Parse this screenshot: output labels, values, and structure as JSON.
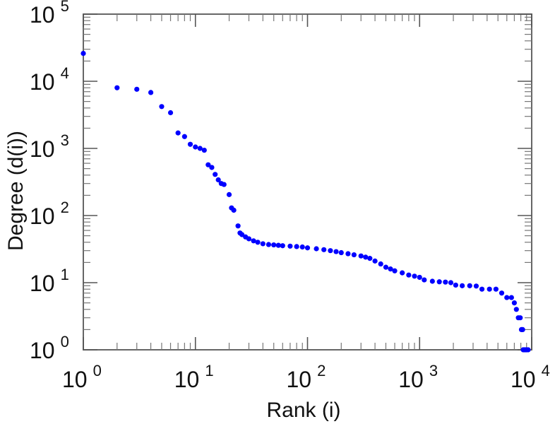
{
  "chart_data": {
    "type": "scatter",
    "x_scale": "log",
    "y_scale": "log",
    "xlim": [
      1,
      10000
    ],
    "ylim": [
      1,
      100000
    ],
    "xlabel": "Rank (i)",
    "ylabel": "Degree (d(i))",
    "grid": false,
    "marker_color": "#0000ff",
    "x_ticks": [
      {
        "base": "10",
        "exp": "0",
        "value": 1
      },
      {
        "base": "10",
        "exp": "1",
        "value": 10
      },
      {
        "base": "10",
        "exp": "2",
        "value": 100
      },
      {
        "base": "10",
        "exp": "3",
        "value": 1000
      },
      {
        "base": "10",
        "exp": "4",
        "value": 10000
      }
    ],
    "y_ticks": [
      {
        "base": "10",
        "exp": "0",
        "value": 1
      },
      {
        "base": "10",
        "exp": "1",
        "value": 10
      },
      {
        "base": "10",
        "exp": "2",
        "value": 100
      },
      {
        "base": "10",
        "exp": "3",
        "value": 1000
      },
      {
        "base": "10",
        "exp": "4",
        "value": 10000
      },
      {
        "base": "10",
        "exp": "5",
        "value": 100000
      }
    ],
    "points": [
      [
        1,
        26000
      ],
      [
        2,
        8000
      ],
      [
        3,
        7600
      ],
      [
        4,
        6800
      ],
      [
        5,
        4200
      ],
      [
        6,
        3400
      ],
      [
        7,
        1700
      ],
      [
        8,
        1500
      ],
      [
        9,
        1150
      ],
      [
        10,
        1050
      ],
      [
        11,
        1000
      ],
      [
        12,
        940
      ],
      [
        13,
        570
      ],
      [
        14,
        520
      ],
      [
        15,
        410
      ],
      [
        16,
        340
      ],
      [
        17,
        300
      ],
      [
        18,
        290
      ],
      [
        20,
        205
      ],
      [
        21,
        130
      ],
      [
        22,
        120
      ],
      [
        24,
        70
      ],
      [
        25,
        55
      ],
      [
        26,
        52
      ],
      [
        28,
        48
      ],
      [
        30,
        45
      ],
      [
        33,
        42
      ],
      [
        36,
        40
      ],
      [
        40,
        38
      ],
      [
        45,
        37
      ],
      [
        50,
        36.5
      ],
      [
        55,
        36
      ],
      [
        60,
        35.5
      ],
      [
        70,
        35
      ],
      [
        80,
        34.5
      ],
      [
        90,
        34
      ],
      [
        100,
        33
      ],
      [
        120,
        32
      ],
      [
        140,
        31
      ],
      [
        160,
        30
      ],
      [
        180,
        29
      ],
      [
        200,
        28
      ],
      [
        230,
        27
      ],
      [
        260,
        26
      ],
      [
        300,
        25
      ],
      [
        330,
        24
      ],
      [
        360,
        23
      ],
      [
        400,
        21
      ],
      [
        450,
        19
      ],
      [
        500,
        17
      ],
      [
        550,
        16
      ],
      [
        600,
        15
      ],
      [
        700,
        14
      ],
      [
        800,
        13
      ],
      [
        900,
        12.5
      ],
      [
        1000,
        12
      ],
      [
        1100,
        11
      ],
      [
        1300,
        10.5
      ],
      [
        1500,
        10.3
      ],
      [
        1700,
        10.2
      ],
      [
        1900,
        10
      ],
      [
        2100,
        9.2
      ],
      [
        2400,
        9
      ],
      [
        2800,
        9
      ],
      [
        3200,
        8.9
      ],
      [
        3600,
        8
      ],
      [
        4200,
        8
      ],
      [
        4800,
        8
      ],
      [
        5400,
        7
      ],
      [
        6000,
        6
      ],
      [
        6600,
        6
      ],
      [
        7000,
        5
      ],
      [
        7300,
        4
      ],
      [
        7600,
        3
      ],
      [
        7900,
        3
      ],
      [
        8100,
        2
      ],
      [
        8300,
        2
      ],
      [
        8400,
        1
      ],
      [
        8600,
        1
      ],
      [
        8800,
        1
      ],
      [
        9000,
        1
      ],
      [
        9300,
        1
      ]
    ]
  }
}
